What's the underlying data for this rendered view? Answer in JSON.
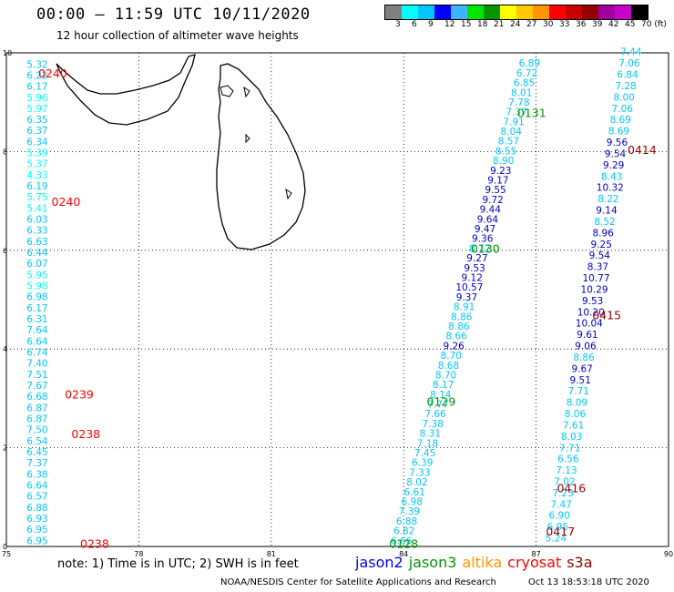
{
  "header": {
    "title": "00:00 – 11:59 UTC 10/11/2020",
    "subtitle": "12 hour collection of altimeter wave heights"
  },
  "color_scale": {
    "labels": [
      "3",
      "6",
      "9",
      "12",
      "15",
      "18",
      "21",
      "24",
      "27",
      "30",
      "33",
      "36",
      "39",
      "42",
      "45",
      "70 (ft)"
    ],
    "colors": [
      "#808080",
      "#00ffff",
      "#00c8ff",
      "#0000ff",
      "#3cb4ff",
      "#00e600",
      "#009600",
      "#ffff00",
      "#ffc800",
      "#ff9600",
      "#ff0000",
      "#c80000",
      "#960000",
      "#a000a0",
      "#c800c8",
      "#000000"
    ]
  },
  "axes": {
    "x_ticks": [
      "75",
      "78",
      "81",
      "84",
      "87",
      "90"
    ],
    "y_ticks": [
      "0",
      "2",
      "4",
      "6",
      "8",
      "10"
    ]
  },
  "chart_data": {
    "type": "scatter",
    "x_unit": "longitude (deg E)",
    "y_unit": "latitude (deg N)",
    "xlim": [
      75,
      90
    ],
    "ylim": [
      0,
      10
    ],
    "grid": true,
    "tracks": [
      {
        "pass": "cryosat",
        "color": "#ff0000",
        "type": "values",
        "lon": 75.7,
        "lat_start": 9.7,
        "lat_end": 0.05,
        "values": [
          "5.32",
          "6.22",
          "6.17",
          "5.96",
          "5.97",
          "6.35",
          "6.37",
          "6.34",
          "5.39",
          "5.37",
          "4.33",
          "6.19",
          "5.75",
          "5.41",
          "6.03",
          "6.33",
          "6.63",
          "6.44",
          "6.07",
          "5.95",
          "5.98",
          "6.98",
          "6.17",
          "6.31",
          "7.64",
          "6.64",
          "6.74",
          "7.40",
          "7.51",
          "7.67",
          "6.68",
          "6.87",
          "6.87",
          "7.50",
          "6.54",
          "6.45",
          "7.37",
          "6.38",
          "6.64",
          "6.57",
          "6.88",
          "6.93",
          "6.95",
          "6.95"
        ],
        "colors": [
          "#00c8ff",
          "#00c8ff",
          "#00c8ff",
          "#00ffff",
          "#00ffff",
          "#00c8ff",
          "#00c8ff",
          "#00c8ff",
          "#00ffff",
          "#00ffff",
          "#00ffff",
          "#00c8ff",
          "#00ffff",
          "#00ffff",
          "#00c8ff",
          "#00c8ff",
          "#00c8ff",
          "#00c8ff",
          "#00c8ff",
          "#00ffff",
          "#00ffff",
          "#00c8ff",
          "#00c8ff",
          "#00c8ff",
          "#00c8ff",
          "#00c8ff",
          "#00c8ff",
          "#00c8ff",
          "#00c8ff",
          "#00c8ff",
          "#00c8ff",
          "#00c8ff",
          "#00c8ff",
          "#00c8ff",
          "#00c8ff",
          "#00c8ff",
          "#00c8ff",
          "#00c8ff",
          "#00c8ff",
          "#00c8ff",
          "#00c8ff",
          "#00c8ff",
          "#00c8ff",
          "#00c8ff"
        ]
      },
      {
        "pass": "jason3",
        "color": "#009600",
        "type": "values",
        "lon_start": 83.95,
        "lon_end": 86.85,
        "lat_start": 0.05,
        "lat_end": 9.72,
        "values": [
          "6.66",
          "6.82",
          "6.88",
          "7.39",
          "6.98",
          "6.61",
          "8.02",
          "7.33",
          "6.39",
          "7.45",
          "7.18",
          "8.31",
          "7.38",
          "7.66",
          "7.77",
          "8.14",
          "8.17",
          "8.70",
          "8.68",
          "8.70",
          "9.26",
          "8.66",
          "8.86",
          "8.86",
          "8.91",
          "9.37",
          "10.57",
          "9.12",
          "9.53",
          "9.27",
          "8.72",
          "9.36",
          "9.47",
          "9.64",
          "9.44",
          "9.72",
          "9.55",
          "9.17",
          "9.23",
          "8.90",
          "8.55",
          "8.57",
          "8.04",
          "7.91",
          "7.37",
          "7.78",
          "8.01",
          "6.85",
          "6.72",
          "6.89"
        ],
        "colors": [
          "#00c8ff",
          "#00c8ff",
          "#00c8ff",
          "#00c8ff",
          "#00c8ff",
          "#00c8ff",
          "#00c8ff",
          "#00c8ff",
          "#00c8ff",
          "#00c8ff",
          "#00c8ff",
          "#00c8ff",
          "#00c8ff",
          "#00c8ff",
          "#00c8ff",
          "#00c8ff",
          "#00c8ff",
          "#00c8ff",
          "#00c8ff",
          "#00c8ff",
          "#0000c8",
          "#00c8ff",
          "#00c8ff",
          "#00c8ff",
          "#00c8ff",
          "#0000c8",
          "#0000c8",
          "#0000c8",
          "#0000c8",
          "#0000c8",
          "#00c8ff",
          "#0000c8",
          "#0000c8",
          "#0000c8",
          "#0000c8",
          "#0000c8",
          "#0000c8",
          "#0000c8",
          "#0000c8",
          "#00c8ff",
          "#00c8ff",
          "#00c8ff",
          "#00c8ff",
          "#00c8ff",
          "#00c8ff",
          "#00c8ff",
          "#00c8ff",
          "#00c8ff",
          "#00c8ff",
          "#00c8ff"
        ]
      },
      {
        "pass": "s3a",
        "color": "#960000",
        "type": "values",
        "lon_start": 87.45,
        "lon_end": 89.15,
        "lat_start": 0.1,
        "lat_end": 9.95,
        "values": [
          "5.24",
          "6.95",
          "6.90",
          "7.47",
          "7.23",
          "7.02",
          "7.13",
          "6.56",
          "7.71",
          "8.03",
          "7.61",
          "8.06",
          "8.09",
          "7.71",
          "9.51",
          "9.67",
          "8.86",
          "9.06",
          "9.61",
          "10.04",
          "10.20",
          "9.53",
          "10.29",
          "10.77",
          "8.37",
          "9.54",
          "9.25",
          "8.96",
          "8.52",
          "9.14",
          "8.22",
          "10.32",
          "8.43",
          "9.29",
          "9.54",
          "9.56",
          "8.69",
          "8.69",
          "7.06",
          "8.00",
          "7.28",
          "6.84",
          "7.06",
          "7.44"
        ],
        "colors": [
          "#00c8ff",
          "#00c8ff",
          "#00c8ff",
          "#00c8ff",
          "#00c8ff",
          "#00c8ff",
          "#00c8ff",
          "#00c8ff",
          "#00c8ff",
          "#00c8ff",
          "#00c8ff",
          "#00c8ff",
          "#00c8ff",
          "#00c8ff",
          "#0000c8",
          "#0000c8",
          "#00c8ff",
          "#0000c8",
          "#0000c8",
          "#0000c8",
          "#0000c8",
          "#0000c8",
          "#0000c8",
          "#0000c8",
          "#0000c8",
          "#0000c8",
          "#0000c8",
          "#0000c8",
          "#00c8ff",
          "#0000c8",
          "#00c8ff",
          "#0000c8",
          "#00c8ff",
          "#0000c8",
          "#0000c8",
          "#0000c8",
          "#00c8ff",
          "#00c8ff",
          "#00c8ff",
          "#00c8ff",
          "#00c8ff",
          "#00c8ff",
          "#00c8ff",
          "#00c8ff"
        ]
      }
    ],
    "time_labels": [
      {
        "text": "0240",
        "lon": 76.05,
        "lat": 9.5,
        "color": "#ff0000"
      },
      {
        "text": "0240",
        "lon": 76.35,
        "lat": 6.9,
        "color": "#ff0000"
      },
      {
        "text": "0239",
        "lon": 76.65,
        "lat": 3.0,
        "color": "#ff0000"
      },
      {
        "text": "0238",
        "lon": 76.8,
        "lat": 2.2,
        "color": "#ff0000"
      },
      {
        "text": "0238",
        "lon": 77.0,
        "lat": -0.03,
        "color": "#ff0000"
      },
      {
        "text": "0128",
        "lon": 84.0,
        "lat": -0.03,
        "color": "#009600"
      },
      {
        "text": "0129",
        "lon": 84.85,
        "lat": 2.85,
        "color": "#009600"
      },
      {
        "text": "0130",
        "lon": 85.85,
        "lat": 5.95,
        "color": "#009600"
      },
      {
        "text": "0131",
        "lon": 86.9,
        "lat": 8.7,
        "color": "#009600"
      },
      {
        "text": "0414",
        "lon": 89.4,
        "lat": 7.95,
        "color": "#960000"
      },
      {
        "text": "0415",
        "lon": 88.6,
        "lat": 4.6,
        "color": "#960000"
      },
      {
        "text": "0416",
        "lon": 87.8,
        "lat": 1.1,
        "color": "#960000"
      },
      {
        "text": "0417",
        "lon": 87.55,
        "lat": 0.22,
        "color": "#960000"
      }
    ]
  },
  "footer": {
    "note": "note: 1) Time is in UTC; 2) SWH is in feet",
    "legend": [
      {
        "name": "jason2",
        "color": "#0000ff"
      },
      {
        "name": "jason3",
        "color": "#009600"
      },
      {
        "name": "altika",
        "color": "#ff9600"
      },
      {
        "name": "cryosat",
        "color": "#ff0000"
      },
      {
        "name": "s3a",
        "color": "#960000"
      }
    ],
    "credit": "NOAA/NESDIS Center for Satellite Applications and Research",
    "timestamp": "Oct 13 18:53:18 UTC 2020"
  }
}
